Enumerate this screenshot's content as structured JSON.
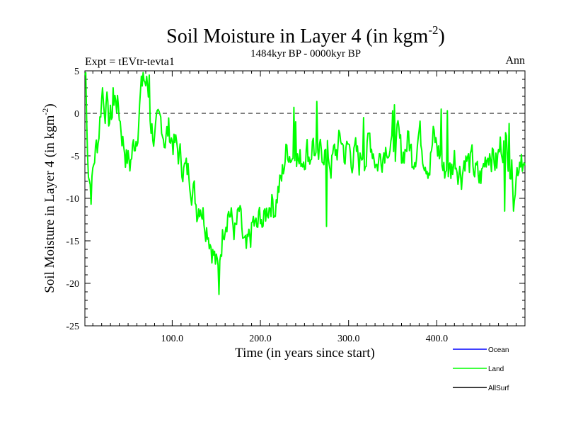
{
  "chart_data": {
    "type": "line",
    "title": "Soil Moisture in Layer 4 (in kgm",
    "title_sup": "-2",
    "title_close": ")",
    "subtitle": "1484kyr BP - 0000kyr BP",
    "left_label": "Expt = tEVtr-tevta1",
    "right_label": "Ann",
    "xlabel": "Time (in years since start)",
    "ylabel": "Soil Moisture in Layer 4 (in kgm",
    "ylabel_sup": "-2",
    "ylabel_close": ")",
    "xlim": [
      1,
      500
    ],
    "ylim": [
      -25,
      5
    ],
    "x_ticks": [
      100,
      200,
      300,
      400
    ],
    "x_tick_labels": [
      "100.0",
      "200.0",
      "300.0",
      "400.0"
    ],
    "y_ticks": [
      5,
      0,
      -5,
      -10,
      -15,
      -20,
      -25
    ],
    "y_tick_labels": [
      "5",
      "0",
      "-5",
      "-10",
      "-15",
      "-20",
      "-25"
    ],
    "reference_line": 0,
    "legend": [
      {
        "name": "Ocean",
        "color": "#0000ff"
      },
      {
        "name": "Land",
        "color": "#00ff00"
      },
      {
        "name": "AllSurf",
        "color": "#000000"
      }
    ],
    "series": [
      {
        "name": "Land",
        "color": "#00ff00",
        "keypoints": [
          [
            1,
            4.5
          ],
          [
            3,
            -1
          ],
          [
            5,
            -6
          ],
          [
            8,
            -9
          ],
          [
            12,
            -5
          ],
          [
            16,
            -3
          ],
          [
            20,
            2
          ],
          [
            24,
            1
          ],
          [
            28,
            -1
          ],
          [
            32,
            0
          ],
          [
            36,
            2
          ],
          [
            40,
            0
          ],
          [
            44,
            -3
          ],
          [
            48,
            -5
          ],
          [
            52,
            -6
          ],
          [
            56,
            -4
          ],
          [
            60,
            -2
          ],
          [
            64,
            2
          ],
          [
            68,
            4
          ],
          [
            72,
            3
          ],
          [
            76,
            -1
          ],
          [
            80,
            -3
          ],
          [
            84,
            -2
          ],
          [
            88,
            -1
          ],
          [
            92,
            -3
          ],
          [
            96,
            -2
          ],
          [
            100,
            -3
          ],
          [
            104,
            -4
          ],
          [
            108,
            -5
          ],
          [
            112,
            -6
          ],
          [
            116,
            -7
          ],
          [
            120,
            -7
          ],
          [
            124,
            -9
          ],
          [
            128,
            -11
          ],
          [
            132,
            -10
          ],
          [
            136,
            -12
          ],
          [
            140,
            -13
          ],
          [
            144,
            -15
          ],
          [
            148,
            -17
          ],
          [
            152,
            -19
          ],
          [
            156,
            -15
          ],
          [
            160,
            -12
          ],
          [
            164,
            -11
          ],
          [
            168,
            -13
          ],
          [
            172,
            -14
          ],
          [
            176,
            -12
          ],
          [
            180,
            -15
          ],
          [
            184,
            -17
          ],
          [
            188,
            -15
          ],
          [
            192,
            -13
          ],
          [
            196,
            -14
          ],
          [
            200,
            -12
          ],
          [
            204,
            -13
          ],
          [
            208,
            -11
          ],
          [
            212,
            -10
          ],
          [
            216,
            -11
          ],
          [
            220,
            -9
          ],
          [
            224,
            -8
          ],
          [
            228,
            -5
          ],
          [
            232,
            -4
          ],
          [
            236,
            -5
          ],
          [
            240,
            -3
          ],
          [
            244,
            -6
          ],
          [
            248,
            -5
          ],
          [
            252,
            -4
          ],
          [
            256,
            -5
          ],
          [
            260,
            -3
          ],
          [
            264,
            -7
          ],
          [
            268,
            -5
          ],
          [
            272,
            -4
          ],
          [
            276,
            -5
          ],
          [
            280,
            -6
          ],
          [
            284,
            -5
          ],
          [
            288,
            -4
          ],
          [
            292,
            -3
          ],
          [
            296,
            -5
          ],
          [
            300,
            -4
          ],
          [
            304,
            -5
          ],
          [
            308,
            -5
          ],
          [
            312,
            -6
          ],
          [
            316,
            -4
          ],
          [
            320,
            -5
          ],
          [
            324,
            -3
          ],
          [
            328,
            -4
          ],
          [
            332,
            -6
          ],
          [
            336,
            -5
          ],
          [
            340,
            -4
          ],
          [
            344,
            -3
          ],
          [
            348,
            -5
          ],
          [
            352,
            -4
          ],
          [
            356,
            -3
          ],
          [
            360,
            -5
          ],
          [
            364,
            -4
          ],
          [
            368,
            -3
          ],
          [
            372,
            -5
          ],
          [
            376,
            -4
          ],
          [
            380,
            -2
          ],
          [
            384,
            -4
          ],
          [
            388,
            -5
          ],
          [
            392,
            -6
          ],
          [
            396,
            -3
          ],
          [
            400,
            -4
          ],
          [
            404,
            -5
          ],
          [
            408,
            -7
          ],
          [
            412,
            -6
          ],
          [
            416,
            -7
          ],
          [
            420,
            -5
          ],
          [
            424,
            -6
          ],
          [
            428,
            -7
          ],
          [
            432,
            -5
          ],
          [
            436,
            -6
          ],
          [
            440,
            -6
          ],
          [
            444,
            -7
          ],
          [
            448,
            -8
          ],
          [
            452,
            -7
          ],
          [
            456,
            -5
          ],
          [
            460,
            -4
          ],
          [
            464,
            -5
          ],
          [
            468,
            -6
          ],
          [
            472,
            -4
          ],
          [
            476,
            -3
          ],
          [
            480,
            -4
          ],
          [
            484,
            -6
          ],
          [
            488,
            -8
          ],
          [
            492,
            -6
          ],
          [
            496,
            -4
          ],
          [
            500,
            -7
          ]
        ],
        "spikes": [
          [
            2,
            4.8
          ],
          [
            21,
            3.0
          ],
          [
            26,
            2.5
          ],
          [
            33,
            3.0
          ],
          [
            67,
            4.8
          ],
          [
            74,
            4.5
          ],
          [
            153,
            -21.3
          ],
          [
            201,
            -12.5
          ],
          [
            238,
            0.7
          ],
          [
            240,
            -1.0
          ],
          [
            264,
            1.4
          ],
          [
            275,
            -13.3
          ],
          [
            317,
            -0.5
          ],
          [
            350,
            0.3
          ],
          [
            352,
            1.0
          ],
          [
            405,
            0.5
          ],
          [
            412,
            0.3
          ],
          [
            477,
            -11.5
          ],
          [
            487,
            -11.5
          ],
          [
            482,
            -1.2
          ]
        ],
        "noise": {
          "seed": 7,
          "amplitude": 1.8
        }
      }
    ]
  }
}
